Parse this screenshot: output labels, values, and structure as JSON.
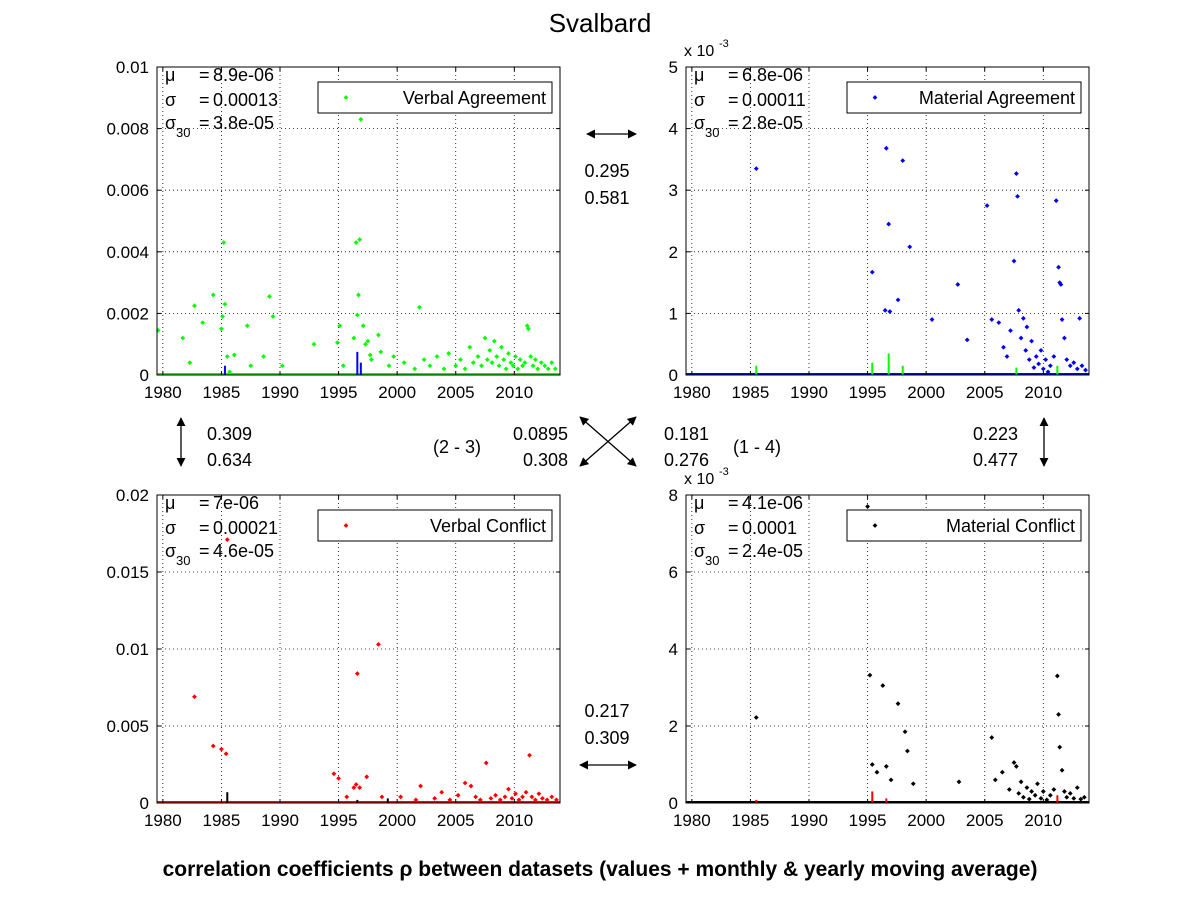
{
  "title": "Svalbard",
  "footer": "correlation coefficients ρ between datasets (values + monthly & yearly moving average)",
  "colors": {
    "green": "#00ff00",
    "blue": "#0000ff",
    "red": "#ff0000",
    "black": "#000000"
  },
  "correlations": {
    "top": {
      "values": [
        "0.295",
        "0.581"
      ]
    },
    "left": {
      "values": [
        "0.309",
        "0.634"
      ]
    },
    "right": {
      "values": [
        "0.223",
        "0.477"
      ]
    },
    "bottom": {
      "values": [
        "0.217",
        "0.309"
      ]
    },
    "diag_23": {
      "label": "(2 - 3)",
      "values": [
        "0.0895",
        "0.308"
      ]
    },
    "diag_14": {
      "label": "(1 - 4)",
      "values": [
        "0.181",
        "0.276"
      ]
    }
  },
  "chart_data": [
    {
      "type": "scatter",
      "title": "",
      "legend": "Verbal Agreement",
      "legend_placement": "top-right",
      "color": "#00ff00",
      "grid": true,
      "xlim": [
        1979.5,
        2013.9
      ],
      "ylim": [
        0,
        0.01
      ],
      "xticks": [
        1980,
        1985,
        1990,
        1995,
        2000,
        2005,
        2010
      ],
      "yticks": [
        0,
        0.002,
        0.004,
        0.006,
        0.008,
        0.01
      ],
      "ytick_labels": [
        "0",
        "0.002",
        "0.004",
        "0.006",
        "0.008",
        "0.01"
      ],
      "exponent": "",
      "stats": {
        "mu": "8.9e-06",
        "sigma": "0.00013",
        "sigma30": "3.8e-05"
      },
      "points": [
        [
          1979.6,
          0.00145
        ],
        [
          1981.7,
          0.0012
        ],
        [
          1982.3,
          0.0004
        ],
        [
          1982.7,
          0.00225
        ],
        [
          1983.4,
          0.0017
        ],
        [
          1984.3,
          0.0026
        ],
        [
          1985.0,
          0.0015
        ],
        [
          1985.1,
          0.0019
        ],
        [
          1985.2,
          0.0043
        ],
        [
          1985.3,
          0.0023
        ],
        [
          1985.5,
          0.0006
        ],
        [
          1985.7,
          0.0001
        ],
        [
          1986.1,
          0.00065
        ],
        [
          1987.2,
          0.0016
        ],
        [
          1987.5,
          0.0003
        ],
        [
          1988.6,
          0.0006
        ],
        [
          1989.1,
          0.00255
        ],
        [
          1989.4,
          0.0019
        ],
        [
          1990.2,
          0.0003
        ],
        [
          1992.9,
          0.001
        ],
        [
          1994.9,
          0.00105
        ],
        [
          1995.1,
          0.0016
        ],
        [
          1995.4,
          0.0003
        ],
        [
          1996.3,
          0.0012
        ],
        [
          1996.5,
          0.0043
        ],
        [
          1996.6,
          0.00195
        ],
        [
          1996.7,
          0.0026
        ],
        [
          1996.8,
          0.0044
        ],
        [
          1996.9,
          0.0083
        ],
        [
          1997.1,
          0.0016
        ],
        [
          1997.3,
          0.001
        ],
        [
          1997.5,
          0.0011
        ],
        [
          1997.7,
          0.00065
        ],
        [
          1997.8,
          0.0005
        ],
        [
          1998.4,
          0.0013
        ],
        [
          1998.6,
          0.00075
        ],
        [
          1999.3,
          0.0003
        ],
        [
          1999.7,
          0.0006
        ],
        [
          2000.6,
          0.0004
        ],
        [
          2001.5,
          0.0002
        ],
        [
          2001.9,
          0.0022
        ],
        [
          2002.3,
          0.0005
        ],
        [
          2002.8,
          0.0003
        ],
        [
          2003.4,
          0.0006
        ],
        [
          2004.0,
          0.0002
        ],
        [
          2004.4,
          0.0007
        ],
        [
          2005.0,
          0.0003
        ],
        [
          2005.4,
          0.0005
        ],
        [
          2005.8,
          0.0002
        ],
        [
          2006.2,
          0.0009
        ],
        [
          2006.5,
          0.0004
        ],
        [
          2006.9,
          0.0006
        ],
        [
          2007.2,
          0.0003
        ],
        [
          2007.5,
          0.0012
        ],
        [
          2007.7,
          0.0005
        ],
        [
          2007.9,
          0.0008
        ],
        [
          2008.1,
          0.0004
        ],
        [
          2008.3,
          0.0011
        ],
        [
          2008.5,
          0.0006
        ],
        [
          2008.7,
          0.0003
        ],
        [
          2008.9,
          0.0009
        ],
        [
          2009.1,
          0.0005
        ],
        [
          2009.3,
          0.0002
        ],
        [
          2009.5,
          0.0007
        ],
        [
          2009.7,
          0.0004
        ],
        [
          2009.9,
          0.0003
        ],
        [
          2010.1,
          0.0006
        ],
        [
          2010.3,
          0.0002
        ],
        [
          2010.5,
          0.0005
        ],
        [
          2010.7,
          0.0003
        ],
        [
          2010.9,
          0.0004
        ],
        [
          2011.1,
          0.0016
        ],
        [
          2011.2,
          0.0015
        ],
        [
          2011.4,
          0.0006
        ],
        [
          2011.6,
          0.0003
        ],
        [
          2011.8,
          0.0005
        ],
        [
          2012.0,
          0.0002
        ],
        [
          2012.3,
          0.0004
        ],
        [
          2012.6,
          0.0003
        ],
        [
          2012.9,
          0.0002
        ],
        [
          2013.2,
          0.0004
        ],
        [
          2013.5,
          0.0002
        ]
      ],
      "ref_color": "#0000ff",
      "ref_spikes": [
        [
          1985.3,
          0.0003
        ],
        [
          1996.6,
          0.00075
        ],
        [
          1996.9,
          0.0004
        ]
      ]
    },
    {
      "type": "scatter",
      "title": "",
      "legend": "Material Agreement",
      "legend_placement": "top-right",
      "color": "#0000ff",
      "grid": true,
      "xlim": [
        1979.5,
        2013.9
      ],
      "ylim": [
        0,
        5
      ],
      "xticks": [
        1980,
        1985,
        1990,
        1995,
        2000,
        2005,
        2010
      ],
      "yticks": [
        0,
        1,
        2,
        3,
        4,
        5
      ],
      "ytick_labels": [
        "0",
        "1",
        "2",
        "3",
        "4",
        "5"
      ],
      "exponent": "x 10",
      "exponent_power": "-3",
      "stats": {
        "mu": "6.8e-06",
        "sigma": "0.00011",
        "sigma30": "2.8e-05"
      },
      "points": [
        [
          1985.5,
          3.35
        ],
        [
          1995.4,
          1.67
        ],
        [
          1996.5,
          1.05
        ],
        [
          1996.6,
          3.68
        ],
        [
          1996.8,
          2.45
        ],
        [
          1996.9,
          1.03
        ],
        [
          1997.6,
          1.22
        ],
        [
          1998.0,
          3.48
        ],
        [
          1998.6,
          2.08
        ],
        [
          2000.5,
          0.9
        ],
        [
          2002.7,
          1.47
        ],
        [
          2003.5,
          0.57
        ],
        [
          2005.2,
          2.75
        ],
        [
          2005.6,
          0.9
        ],
        [
          2006.2,
          0.85
        ],
        [
          2006.6,
          0.45
        ],
        [
          2006.9,
          0.3
        ],
        [
          2007.2,
          0.72
        ],
        [
          2007.5,
          1.85
        ],
        [
          2007.7,
          3.27
        ],
        [
          2007.8,
          2.9
        ],
        [
          2007.9,
          1.05
        ],
        [
          2008.1,
          0.6
        ],
        [
          2008.3,
          0.92
        ],
        [
          2008.5,
          0.4
        ],
        [
          2008.6,
          0.78
        ],
        [
          2008.8,
          0.25
        ],
        [
          2009.0,
          0.55
        ],
        [
          2009.2,
          0.12
        ],
        [
          2009.4,
          0.3
        ],
        [
          2009.6,
          0.18
        ],
        [
          2009.8,
          0.4
        ],
        [
          2010.0,
          0.1
        ],
        [
          2010.2,
          0.25
        ],
        [
          2010.4,
          0.05
        ],
        [
          2010.6,
          0.15
        ],
        [
          2010.9,
          0.3
        ],
        [
          2011.1,
          2.83
        ],
        [
          2011.3,
          1.75
        ],
        [
          2011.4,
          1.5
        ],
        [
          2011.5,
          1.47
        ],
        [
          2011.6,
          0.9
        ],
        [
          2011.8,
          0.6
        ],
        [
          2012.0,
          0.25
        ],
        [
          2012.3,
          0.15
        ],
        [
          2012.6,
          0.2
        ],
        [
          2012.9,
          0.1
        ],
        [
          2013.1,
          0.92
        ],
        [
          2013.3,
          0.15
        ],
        [
          2013.6,
          0.08
        ]
      ],
      "ref_color": "#00ff00",
      "ref_spikes": [
        [
          1985.5,
          0.15
        ],
        [
          1995.4,
          0.2
        ],
        [
          1996.8,
          0.35
        ],
        [
          1998.0,
          0.15
        ],
        [
          2007.7,
          0.12
        ],
        [
          2011.2,
          0.15
        ]
      ]
    },
    {
      "type": "scatter",
      "title": "",
      "legend": "Verbal Conflict",
      "legend_placement": "top-right",
      "color": "#ff0000",
      "grid": true,
      "xlim": [
        1979.5,
        2013.9
      ],
      "ylim": [
        0,
        0.02
      ],
      "xticks": [
        1980,
        1985,
        1990,
        1995,
        2000,
        2005,
        2010
      ],
      "yticks": [
        0,
        0.005,
        0.01,
        0.015,
        0.02
      ],
      "ytick_labels": [
        "0",
        "0.005",
        "0.01",
        "0.015",
        "0.02"
      ],
      "exponent": "",
      "stats": {
        "mu": "7e-06",
        "sigma": "0.00021",
        "sigma30": "4.6e-05"
      },
      "points": [
        [
          1982.7,
          0.0069
        ],
        [
          1984.3,
          0.0037
        ],
        [
          1985.0,
          0.0035
        ],
        [
          1985.4,
          0.0032
        ],
        [
          1985.5,
          0.0171
        ],
        [
          1994.6,
          0.0019
        ],
        [
          1995.0,
          0.0016
        ],
        [
          1995.7,
          0.0004
        ],
        [
          1996.3,
          0.001
        ],
        [
          1996.5,
          0.0012
        ],
        [
          1996.6,
          0.0084
        ],
        [
          1996.8,
          0.001
        ],
        [
          1997.4,
          0.0017
        ],
        [
          1998.4,
          0.0103
        ],
        [
          1998.7,
          0.0004
        ],
        [
          2000.3,
          0.0004
        ],
        [
          2001.6,
          0.0002
        ],
        [
          2002.0,
          0.0011
        ],
        [
          2003.2,
          0.0003
        ],
        [
          2003.8,
          0.0007
        ],
        [
          2004.5,
          0.0002
        ],
        [
          2005.2,
          0.0005
        ],
        [
          2005.8,
          0.0013
        ],
        [
          2006.3,
          0.0011
        ],
        [
          2006.7,
          0.0004
        ],
        [
          2007.1,
          0.0002
        ],
        [
          2007.6,
          0.0026
        ],
        [
          2008.0,
          0.0003
        ],
        [
          2008.4,
          0.0005
        ],
        [
          2008.8,
          0.0002
        ],
        [
          2009.2,
          0.0004
        ],
        [
          2009.5,
          0.0009
        ],
        [
          2009.8,
          0.0003
        ],
        [
          2010.1,
          0.0006
        ],
        [
          2010.4,
          0.0002
        ],
        [
          2010.7,
          0.0004
        ],
        [
          2011.0,
          0.0007
        ],
        [
          2011.3,
          0.0031
        ],
        [
          2011.5,
          0.0004
        ],
        [
          2011.8,
          0.0002
        ],
        [
          2012.1,
          0.0006
        ],
        [
          2012.4,
          0.0003
        ],
        [
          2012.8,
          0.0002
        ],
        [
          2013.2,
          0.0004
        ],
        [
          2013.6,
          0.0002
        ]
      ],
      "ref_color": "#000000",
      "ref_spikes": [
        [
          1985.5,
          0.0007
        ],
        [
          1996.6,
          0.0002
        ],
        [
          1999.2,
          0.0003
        ]
      ]
    },
    {
      "type": "scatter",
      "title": "",
      "legend": "Material Conflict",
      "legend_placement": "top-right",
      "color": "#000000",
      "grid": true,
      "xlim": [
        1979.5,
        2013.9
      ],
      "ylim": [
        0,
        8
      ],
      "xticks": [
        1980,
        1985,
        1990,
        1995,
        2000,
        2005,
        2010
      ],
      "yticks": [
        0,
        2,
        4,
        6,
        8
      ],
      "ytick_labels": [
        "0",
        "2",
        "4",
        "6",
        "8"
      ],
      "exponent": "x 10",
      "exponent_power": "-3",
      "stats": {
        "mu": "4.1e-06",
        "sigma": "0.0001",
        "sigma30": "2.4e-05"
      },
      "points": [
        [
          1985.5,
          2.22
        ],
        [
          1995.0,
          7.7
        ],
        [
          1995.2,
          3.32
        ],
        [
          1995.4,
          1.0
        ],
        [
          1995.8,
          0.8
        ],
        [
          1996.3,
          3.05
        ],
        [
          1996.6,
          0.95
        ],
        [
          1997.0,
          0.6
        ],
        [
          1997.6,
          2.58
        ],
        [
          1998.2,
          1.85
        ],
        [
          1998.4,
          1.35
        ],
        [
          1998.9,
          0.5
        ],
        [
          2002.8,
          0.55
        ],
        [
          2005.6,
          1.7
        ],
        [
          2005.9,
          0.6
        ],
        [
          2006.5,
          0.8
        ],
        [
          2007.1,
          0.35
        ],
        [
          2007.5,
          1.05
        ],
        [
          2007.7,
          0.95
        ],
        [
          2007.9,
          0.25
        ],
        [
          2008.1,
          0.55
        ],
        [
          2008.3,
          0.15
        ],
        [
          2008.6,
          0.4
        ],
        [
          2008.8,
          0.1
        ],
        [
          2009.0,
          0.3
        ],
        [
          2009.3,
          0.2
        ],
        [
          2009.5,
          0.5
        ],
        [
          2009.8,
          0.12
        ],
        [
          2010.0,
          0.3
        ],
        [
          2010.3,
          0.08
        ],
        [
          2010.6,
          0.2
        ],
        [
          2010.9,
          0.35
        ],
        [
          2011.2,
          3.3
        ],
        [
          2011.3,
          2.3
        ],
        [
          2011.4,
          1.45
        ],
        [
          2011.6,
          0.85
        ],
        [
          2011.8,
          0.3
        ],
        [
          2012.0,
          0.15
        ],
        [
          2012.3,
          0.25
        ],
        [
          2012.6,
          0.12
        ],
        [
          2012.9,
          0.4
        ],
        [
          2013.2,
          0.1
        ],
        [
          2013.5,
          0.15
        ]
      ],
      "ref_color": "#ff0000",
      "ref_spikes": [
        [
          1985.5,
          0.08
        ],
        [
          1995.4,
          0.3
        ],
        [
          1996.6,
          0.12
        ],
        [
          2011.2,
          0.2
        ]
      ]
    }
  ]
}
